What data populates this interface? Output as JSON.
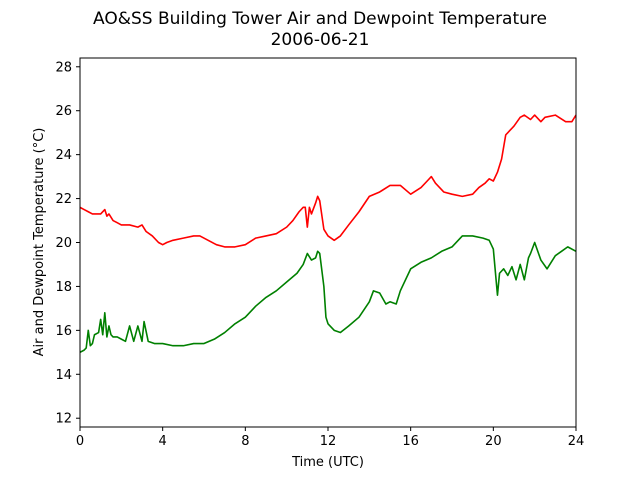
{
  "chart_data": {
    "type": "line",
    "title": "AO&SS Building Tower Air and Dewpoint Temperature",
    "subtitle": "2006-06-21",
    "xlabel": "Time (UTC)",
    "ylabel": "Air and Dewpoint Temperature (°C)",
    "xlim": [
      0,
      24
    ],
    "ylim": [
      11.6,
      28.4
    ],
    "xticks": [
      0,
      4,
      8,
      12,
      16,
      20,
      24
    ],
    "yticks": [
      12,
      14,
      16,
      18,
      20,
      22,
      24,
      26,
      28
    ],
    "grid": false,
    "legend": "none",
    "series": [
      {
        "color": "#ff0000",
        "x": [
          0,
          0.2,
          0.4,
          0.6,
          0.8,
          1.0,
          1.2,
          1.3,
          1.4,
          1.6,
          1.8,
          2.0,
          2.4,
          2.8,
          3.0,
          3.2,
          3.5,
          3.8,
          4.0,
          4.2,
          4.5,
          5.0,
          5.5,
          5.8,
          6.2,
          6.6,
          7.0,
          7.5,
          8.0,
          8.5,
          9.0,
          9.5,
          10.0,
          10.3,
          10.6,
          10.8,
          10.9,
          11.0,
          11.1,
          11.2,
          11.4,
          11.5,
          11.6,
          11.8,
          12.0,
          12.3,
          12.6,
          13.0,
          13.5,
          14.0,
          14.5,
          15.0,
          15.5,
          16.0,
          16.5,
          16.8,
          17.0,
          17.2,
          17.6,
          18.0,
          18.5,
          19.0,
          19.3,
          19.6,
          19.8,
          20.0,
          20.2,
          20.4,
          20.6,
          20.8,
          21.0,
          21.3,
          21.5,
          21.8,
          22.0,
          22.3,
          22.5,
          23.0,
          23.5,
          23.8,
          24.0
        ],
        "values": [
          21.6,
          21.5,
          21.4,
          21.3,
          21.3,
          21.3,
          21.5,
          21.2,
          21.3,
          21.0,
          20.9,
          20.8,
          20.8,
          20.7,
          20.8,
          20.5,
          20.3,
          20.0,
          19.9,
          20.0,
          20.1,
          20.2,
          20.3,
          20.3,
          20.1,
          19.9,
          19.8,
          19.8,
          19.9,
          20.2,
          20.3,
          20.4,
          20.7,
          21.0,
          21.4,
          21.6,
          21.6,
          20.7,
          21.6,
          21.3,
          21.8,
          22.1,
          21.9,
          20.6,
          20.3,
          20.1,
          20.3,
          20.8,
          21.4,
          22.1,
          22.3,
          22.6,
          22.6,
          22.2,
          22.5,
          22.8,
          23.0,
          22.7,
          22.3,
          22.2,
          22.1,
          22.2,
          22.5,
          22.7,
          22.9,
          22.8,
          23.2,
          23.8,
          24.9,
          25.1,
          25.3,
          25.7,
          25.8,
          25.6,
          25.8,
          25.5,
          25.7,
          25.8,
          25.5,
          25.5,
          25.8
        ]
      },
      {
        "color": "#008000",
        "x": [
          0,
          0.2,
          0.3,
          0.4,
          0.5,
          0.6,
          0.7,
          0.9,
          1.0,
          1.1,
          1.2,
          1.3,
          1.4,
          1.5,
          1.6,
          1.8,
          2.0,
          2.2,
          2.4,
          2.6,
          2.8,
          3.0,
          3.1,
          3.3,
          3.6,
          4.0,
          4.5,
          5.0,
          5.5,
          6.0,
          6.5,
          7.0,
          7.5,
          8.0,
          8.5,
          9.0,
          9.5,
          10.0,
          10.5,
          10.8,
          11.0,
          11.2,
          11.4,
          11.5,
          11.6,
          11.8,
          11.9,
          12.0,
          12.3,
          12.6,
          13.0,
          13.5,
          14.0,
          14.2,
          14.5,
          14.8,
          15.0,
          15.3,
          15.5,
          16.0,
          16.5,
          17.0,
          17.5,
          18.0,
          18.5,
          19.0,
          19.5,
          19.8,
          20.0,
          20.2,
          20.3,
          20.5,
          20.7,
          20.9,
          21.1,
          21.3,
          21.5,
          21.7,
          21.8,
          22.0,
          22.3,
          22.6,
          23.0,
          23.3,
          23.6,
          24.0
        ],
        "values": [
          15.0,
          15.1,
          15.2,
          16.0,
          15.3,
          15.4,
          15.8,
          15.9,
          16.5,
          15.8,
          16.8,
          15.7,
          16.2,
          15.8,
          15.7,
          15.7,
          15.6,
          15.5,
          16.2,
          15.5,
          16.2,
          15.5,
          16.4,
          15.5,
          15.4,
          15.4,
          15.3,
          15.3,
          15.4,
          15.4,
          15.6,
          15.9,
          16.3,
          16.6,
          17.1,
          17.5,
          17.8,
          18.2,
          18.6,
          19.0,
          19.5,
          19.2,
          19.3,
          19.6,
          19.5,
          18.0,
          16.6,
          16.3,
          16.0,
          15.9,
          16.2,
          16.6,
          17.3,
          17.8,
          17.7,
          17.2,
          17.3,
          17.2,
          17.8,
          18.8,
          19.1,
          19.3,
          19.6,
          19.8,
          20.3,
          20.3,
          20.2,
          20.1,
          19.7,
          17.6,
          18.6,
          18.8,
          18.5,
          18.9,
          18.3,
          19.0,
          18.3,
          19.3,
          19.5,
          20.0,
          19.2,
          18.8,
          19.4,
          19.6,
          19.8,
          19.6
        ]
      }
    ]
  }
}
